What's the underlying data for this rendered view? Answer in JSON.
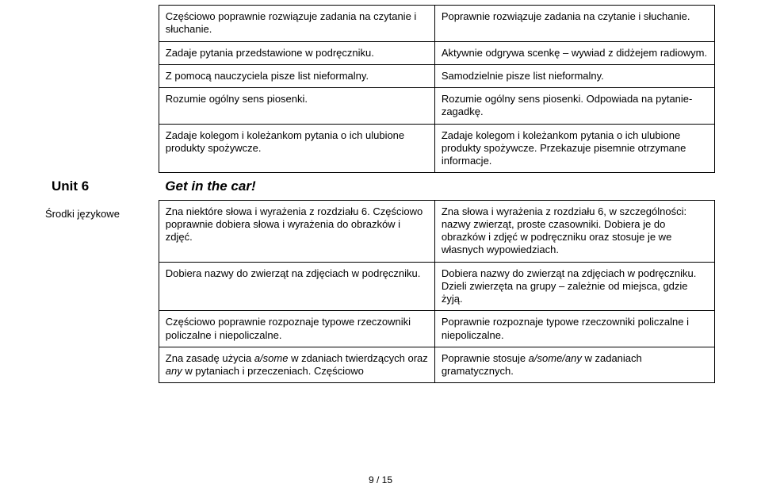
{
  "topTable": {
    "rows": [
      {
        "left": "Częściowo poprawnie rozwiązuje zadania na czytanie i słuchanie.",
        "right": "Poprawnie rozwiązuje zadania na czytanie i słuchanie."
      },
      {
        "left": "Zadaje pytania przedstawione w podręczniku.",
        "right": "Aktywnie odgrywa scenkę – wywiad z didżejem radiowym."
      },
      {
        "left": "Z pomocą nauczyciela pisze list nieformalny.",
        "right": "Samodzielnie pisze list nieformalny."
      },
      {
        "left": "Rozumie ogólny sens piosenki.",
        "right": "Rozumie ogólny sens piosenki. Odpowiada na pytanie-zagadkę."
      },
      {
        "left": "Zadaje kolegom i koleżankom pytania o ich ulubione produkty spożywcze.",
        "right": "Zadaje kolegom i koleżankom pytania o ich ulubione produkty spożywcze. Przekazuje pisemnie otrzymane informacje."
      }
    ]
  },
  "unit": {
    "label": "Unit 6",
    "title": "Get in the car!"
  },
  "bottomTable": {
    "sideLabel": "Środki językowe",
    "rows": [
      {
        "left": "Zna niektóre słowa i wyrażenia z rozdziału 6. Częściowo poprawnie dobiera słowa i wyrażenia do obrazków i zdjęć.",
        "right": "Zna słowa i wyrażenia z rozdziału 6, w szczególności: nazwy zwierząt, proste czasowniki. Dobiera je do obrazków i zdjęć w podręczniku oraz stosuje je we własnych wypowiedziach."
      },
      {
        "left": "Dobiera nazwy do zwierząt na zdjęciach w podręczniku.",
        "right": "Dobiera nazwy do zwierząt na zdjęciach w podręczniku. Dzieli zwierzęta na grupy – zależnie od miejsca, gdzie żyją."
      },
      {
        "left": "Częściowo poprawnie rozpoznaje typowe rzeczowniki policzalne i niepoliczalne.",
        "right": "Poprawnie rozpoznaje typowe rzeczowniki policzalne i niepoliczalne."
      },
      {
        "leftHtml": "Zna zasadę użycia <span class=\"italic\">a/some</span> w zdaniach twierdzących oraz <span class=\"italic\">any</span> w pytaniach i przeczeniach. Częściowo",
        "rightHtml": "Poprawnie stosuje <span class=\"italic\">a/some/any</span> w zadaniach gramatycznych."
      }
    ]
  },
  "footer": "9 / 15"
}
